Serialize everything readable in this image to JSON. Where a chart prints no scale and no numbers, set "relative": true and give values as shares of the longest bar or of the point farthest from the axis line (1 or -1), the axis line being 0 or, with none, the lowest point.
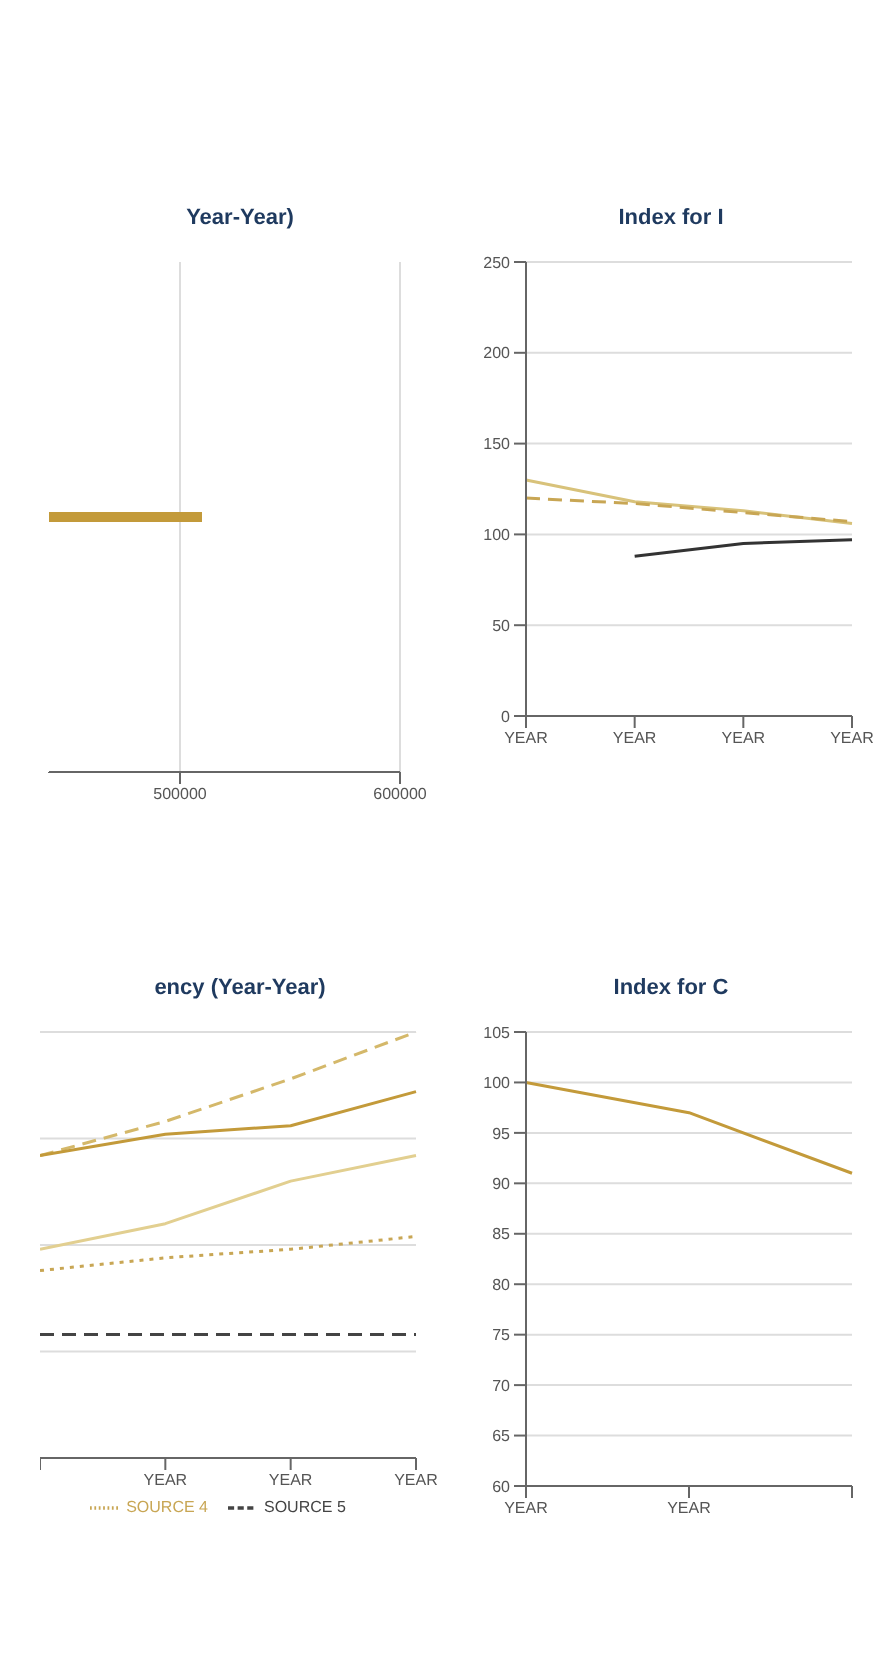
{
  "chart_data": [
    {
      "type": "bar",
      "orientation": "horizontal",
      "title": "Year-Year)",
      "categories": [
        null
      ],
      "values": [
        510000
      ],
      "color": "#c39a3a",
      "xlim": [
        440000,
        600000
      ],
      "xticks": [
        500000,
        600000
      ],
      "grid": "x",
      "tick_labels": "x"
    },
    {
      "type": "line",
      "title": "Index for I",
      "categories": [
        "YEAR",
        "YEAR",
        "YEAR",
        "YEAR"
      ],
      "ylim": [
        0,
        250
      ],
      "yticks": [
        0,
        50,
        100,
        150,
        200,
        250
      ],
      "grid": "y",
      "series": [
        {
          "color": "#d8c27a",
          "line_style": "solid",
          "values": [
            130,
            118,
            113,
            106
          ]
        },
        {
          "color": "#c8a654",
          "line_style": "dashed",
          "values": [
            120,
            117,
            112,
            107
          ]
        },
        {
          "color": "#333333",
          "line_style": "solid",
          "values": [
            null,
            88,
            95,
            97
          ]
        }
      ]
    },
    {
      "type": "line",
      "title": "ency (Year-Year)",
      "relative": true,
      "categories": [
        null,
        "YEAR",
        "YEAR",
        "YEAR"
      ],
      "grid": "y",
      "legend": "bottom",
      "series": [
        {
          "color": "#d4b86a",
          "line_style": "dashed",
          "values": [
            0.71,
            0.79,
            0.89,
            1
          ]
        },
        {
          "color": "#c39a3a",
          "line_style": "solid",
          "values": [
            0.71,
            0.76,
            0.78,
            0.86
          ]
        },
        {
          "color": "#e2cf90",
          "line_style": "solid",
          "values": [
            0.49,
            0.55,
            0.65,
            0.71
          ]
        },
        {
          "name": "SOURCE 4",
          "color": "#c8a654",
          "line_style": "dotted",
          "values": [
            0.44,
            0.47,
            0.49,
            0.52
          ]
        },
        {
          "name": "SOURCE 5",
          "color": "#444444",
          "line_style": "dashed",
          "values": [
            0.29,
            0.29,
            0.29,
            0.29
          ]
        }
      ]
    },
    {
      "type": "line",
      "title": "Index for C",
      "categories": [
        "YEAR",
        "YEAR",
        null
      ],
      "ylim": [
        60,
        105
      ],
      "yticks": [
        60,
        65,
        70,
        75,
        80,
        85,
        90,
        95,
        100,
        105
      ],
      "grid": "y",
      "series": [
        {
          "color": "#c39a3a",
          "line_style": "solid",
          "values": [
            100,
            97,
            91
          ]
        }
      ]
    }
  ]
}
